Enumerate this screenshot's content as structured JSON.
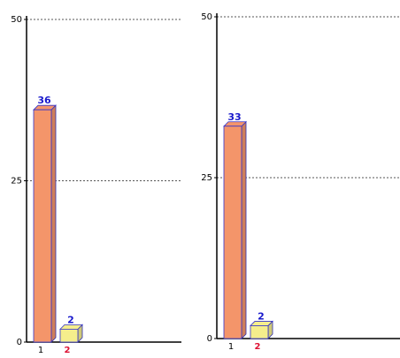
{
  "chart_data": [
    {
      "type": "bar",
      "categories": [
        "1",
        "2"
      ],
      "values": [
        36,
        2
      ],
      "colors": [
        "#f4956a",
        "#f5ee8c"
      ],
      "ylim": [
        0,
        50
      ],
      "yticks": [
        0,
        25,
        50
      ],
      "grid": true
    },
    {
      "type": "bar",
      "categories": [
        "1",
        "2"
      ],
      "values": [
        33,
        2
      ],
      "colors": [
        "#f4956a",
        "#f5ee8c"
      ],
      "ylim": [
        0,
        50
      ],
      "yticks": [
        0,
        25,
        50
      ],
      "grid": true
    }
  ]
}
